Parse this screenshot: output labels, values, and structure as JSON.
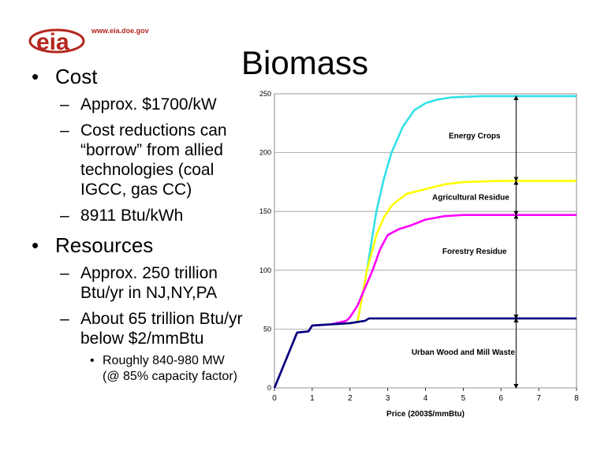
{
  "logo": {
    "url": "www.eia.doe.gov",
    "text": "eia"
  },
  "title": "Biomass",
  "bullets": [
    {
      "text": "Cost",
      "children": [
        {
          "text": "Approx. $1700/kW",
          "children": []
        },
        {
          "text": "Cost reductions can “borrow” from allied technologies (coal IGCC, gas CC)",
          "lines": [
            "Cost reductions can",
            "“borrow” from allied",
            "technologies (coal",
            "IGCC, gas CC)"
          ],
          "children": []
        },
        {
          "text": "8911 Btu/kWh",
          "children": []
        }
      ]
    },
    {
      "text": "Resources",
      "children": [
        {
          "text": "Approx. 250 trillion Btu/yr in NJ,NY,PA",
          "lines": [
            "Approx. 250 trillion",
            "Btu/yr in NJ,NY,PA"
          ],
          "children": []
        },
        {
          "text": "About 65 trillion Btu/yr below $2/mmBtu",
          "lines": [
            "About 65 trillion Btu/yr",
            "below $2/mmBtu"
          ],
          "children": [
            {
              "text": "Roughly 840-980 MW (@ 85% capacity factor)",
              "lines": [
                "Roughly 840-980 MW",
                "(@ 85% capacity factor)"
              ]
            }
          ]
        }
      ]
    }
  ],
  "chart_data": {
    "type": "line",
    "xlabel": "Price (2003$/mmBtu)",
    "ylabel": "",
    "xlim": [
      0,
      8
    ],
    "ylim": [
      0,
      250
    ],
    "xticks": [
      0,
      1,
      2,
      3,
      4,
      5,
      6,
      7,
      8
    ],
    "yticks": [
      0,
      50,
      100,
      150,
      200,
      250
    ],
    "grid": "horizontal",
    "series": [
      {
        "color": "#33e0e8",
        "x": [
          0,
          0.6,
          0.9,
          1.0,
          1.5,
          2.0,
          2.2,
          2.45,
          2.7,
          2.9,
          3.1,
          3.4,
          3.7,
          4.0,
          4.3,
          4.7,
          5.5,
          6.5,
          8.0
        ],
        "y": [
          0,
          47,
          48,
          53,
          54,
          55,
          56,
          100,
          150,
          178,
          200,
          222,
          236,
          242,
          245,
          247,
          248,
          248,
          248
        ]
      },
      {
        "color": "#ffff00",
        "x": [
          0,
          0.6,
          0.9,
          1.0,
          1.5,
          2.0,
          2.2,
          2.45,
          2.7,
          2.9,
          3.1,
          3.3,
          3.5,
          4.0,
          4.5,
          5.0,
          6.0,
          8.0
        ],
        "y": [
          0,
          47,
          48,
          53,
          54,
          55,
          56,
          100,
          130,
          145,
          155,
          160,
          165,
          169,
          173,
          175,
          176,
          176
        ]
      },
      {
        "color": "#ff00ff",
        "x": [
          0,
          0.6,
          0.9,
          1.0,
          1.5,
          1.9,
          2.0,
          2.2,
          2.4,
          2.6,
          2.8,
          3.0,
          3.3,
          3.6,
          4.0,
          4.5,
          5.0,
          6.0,
          8.0
        ],
        "y": [
          0,
          47,
          48,
          53,
          54,
          57,
          60,
          70,
          85,
          100,
          118,
          130,
          135,
          138,
          143,
          146,
          147,
          147,
          147
        ]
      },
      {
        "color": "#000080",
        "x": [
          0,
          0.6,
          0.9,
          1.0,
          1.5,
          2.0,
          2.4,
          2.5,
          3.0,
          4.0,
          5.0,
          6.0,
          7.0,
          8.0
        ],
        "y": [
          0,
          47,
          48,
          53,
          54,
          55,
          57,
          59,
          59,
          59,
          59,
          59,
          59,
          59
        ]
      }
    ],
    "annotations": [
      {
        "text": "Energy Crops",
        "x": 5.3,
        "y": 212
      },
      {
        "text": "Agricultural Residue",
        "x": 5.2,
        "y": 160
      },
      {
        "text": "Forestry Residue",
        "x": 5.3,
        "y": 114
      },
      {
        "text": "Urban Wood and Mill Waste",
        "x": 5.0,
        "y": 28
      }
    ],
    "arrows": [
      {
        "x": 6.4,
        "y1": 248,
        "y2": 176
      },
      {
        "x": 6.4,
        "y1": 176,
        "y2": 147
      },
      {
        "x": 6.4,
        "y1": 147,
        "y2": 59
      },
      {
        "x": 6.4,
        "y1": 59,
        "y2": 0
      }
    ]
  }
}
